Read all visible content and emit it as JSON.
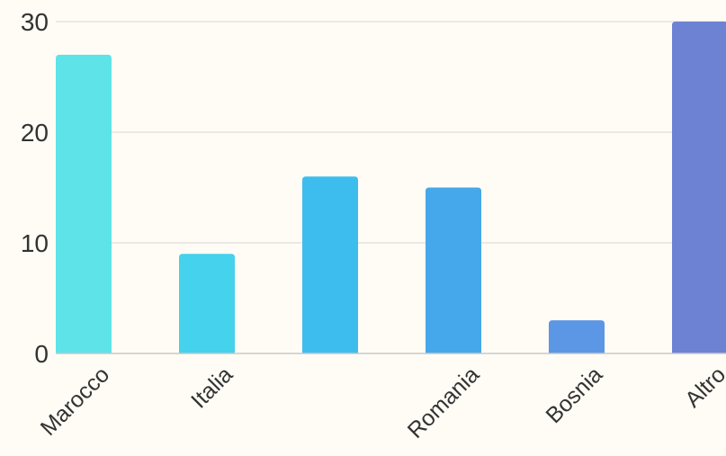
{
  "chart_data": {
    "type": "bar",
    "title": "",
    "xlabel": "",
    "ylabel": "",
    "categories": [
      "Marocco",
      "Italia",
      "",
      "Romania",
      "Bosnia",
      "Altro"
    ],
    "values": [
      27,
      9,
      16,
      15,
      3,
      30
    ],
    "ylim": [
      0,
      30
    ],
    "yticks": [
      "0",
      "10",
      "20",
      "30"
    ],
    "grid": true,
    "legend": "none",
    "colors": [
      "#5de3e8",
      "#45d2ec",
      "#3dbdee",
      "#45a8ea",
      "#5b97e5",
      "#6e82d4"
    ]
  }
}
